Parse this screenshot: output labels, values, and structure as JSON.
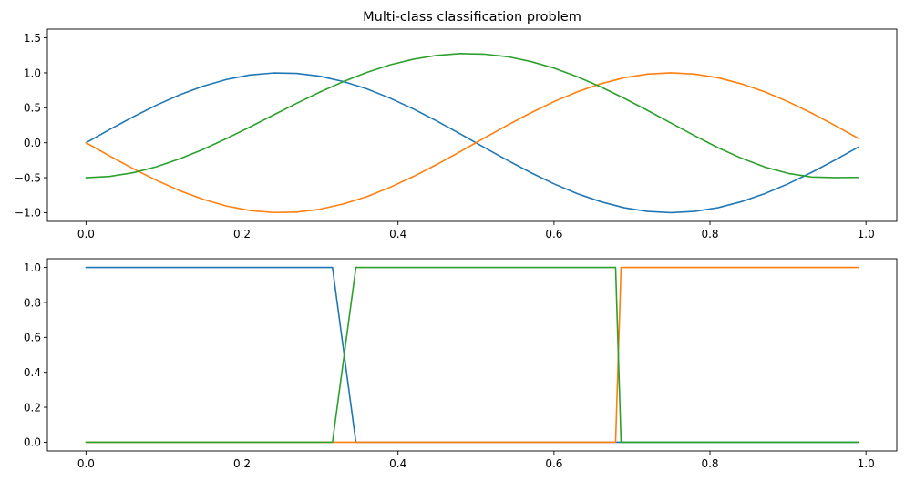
{
  "chart_data": [
    {
      "type": "line",
      "title": "Multi-class classification problem",
      "xlabel": "",
      "ylabel": "",
      "xlim": [
        -0.0495,
        1.0395
      ],
      "ylim": [
        -1.125,
        1.625
      ],
      "xticks": [
        0.0,
        0.2,
        0.4,
        0.6,
        0.8,
        1.0
      ],
      "xtick_labels": [
        "0.0",
        "0.2",
        "0.4",
        "0.6",
        "0.8",
        "1.0"
      ],
      "yticks": [
        -1.0,
        -0.5,
        0.0,
        0.5,
        1.0,
        1.5
      ],
      "ytick_labels": [
        "−1.0",
        "−0.5",
        "0.0",
        "0.5",
        "1.0",
        "1.5"
      ],
      "grid": false,
      "x": [
        0.0,
        0.03,
        0.06,
        0.09,
        0.12,
        0.15,
        0.18,
        0.21,
        0.24,
        0.27,
        0.3,
        0.33,
        0.36,
        0.39,
        0.42,
        0.45,
        0.48,
        0.51,
        0.54,
        0.57,
        0.6,
        0.63,
        0.66,
        0.69,
        0.72,
        0.75,
        0.78,
        0.81,
        0.84,
        0.87,
        0.9,
        0.93,
        0.96,
        0.99
      ],
      "series": [
        {
          "color": "#1f77b4",
          "values": [
            0.0,
            0.187,
            0.368,
            0.536,
            0.685,
            0.809,
            0.905,
            0.969,
            0.998,
            0.992,
            0.951,
            0.876,
            0.771,
            0.637,
            0.482,
            0.309,
            0.125,
            -0.063,
            -0.249,
            -0.426,
            -0.588,
            -0.729,
            -0.844,
            -0.93,
            -0.982,
            -1.0,
            -0.982,
            -0.93,
            -0.844,
            -0.729,
            -0.588,
            -0.426,
            -0.249,
            -0.063
          ]
        },
        {
          "color": "#ff7f0e",
          "values": [
            0.0,
            -0.187,
            -0.368,
            -0.536,
            -0.685,
            -0.809,
            -0.905,
            -0.969,
            -0.998,
            -0.992,
            -0.951,
            -0.876,
            -0.771,
            -0.637,
            -0.482,
            -0.309,
            -0.125,
            0.063,
            0.249,
            0.426,
            0.588,
            0.729,
            0.844,
            0.93,
            0.982,
            1.0,
            0.982,
            0.93,
            0.844,
            0.729,
            0.588,
            0.426,
            0.249,
            0.063
          ]
        },
        {
          "color": "#2ca02c",
          "values": [
            -0.5,
            -0.482,
            -0.43,
            -0.345,
            -0.231,
            -0.095,
            0.059,
            0.224,
            0.395,
            0.564,
            0.726,
            0.875,
            1.006,
            1.115,
            1.196,
            1.25,
            1.275,
            1.268,
            1.232,
            1.163,
            1.068,
            0.944,
            0.799,
            0.636,
            0.462,
            0.282,
            0.103,
            -0.069,
            -0.22,
            -0.347,
            -0.438,
            -0.49,
            -0.498,
            -0.496
          ]
        }
      ]
    },
    {
      "type": "line",
      "title": "",
      "xlabel": "",
      "ylabel": "",
      "xlim": [
        -0.0495,
        1.0395
      ],
      "ylim": [
        -0.05,
        1.05
      ],
      "xticks": [
        0.0,
        0.2,
        0.4,
        0.6,
        0.8,
        1.0
      ],
      "xtick_labels": [
        "0.0",
        "0.2",
        "0.4",
        "0.6",
        "0.8",
        "1.0"
      ],
      "yticks": [
        0.0,
        0.2,
        0.4,
        0.6,
        0.8,
        1.0
      ],
      "ytick_labels": [
        "0.0",
        "0.2",
        "0.4",
        "0.6",
        "0.8",
        "1.0"
      ],
      "grid": false,
      "series": [
        {
          "color": "#1f77b4",
          "x": [
            0.0,
            0.316,
            0.346,
            0.99
          ],
          "values": [
            1,
            1,
            0,
            0
          ]
        },
        {
          "color": "#ff7f0e",
          "x": [
            0.0,
            0.679,
            0.686,
            0.99
          ],
          "values": [
            0,
            0,
            1,
            1
          ]
        },
        {
          "color": "#2ca02c",
          "x": [
            0.0,
            0.316,
            0.346,
            0.679,
            0.686,
            0.99
          ],
          "values": [
            0,
            0,
            1,
            1,
            0,
            0
          ]
        }
      ]
    }
  ]
}
